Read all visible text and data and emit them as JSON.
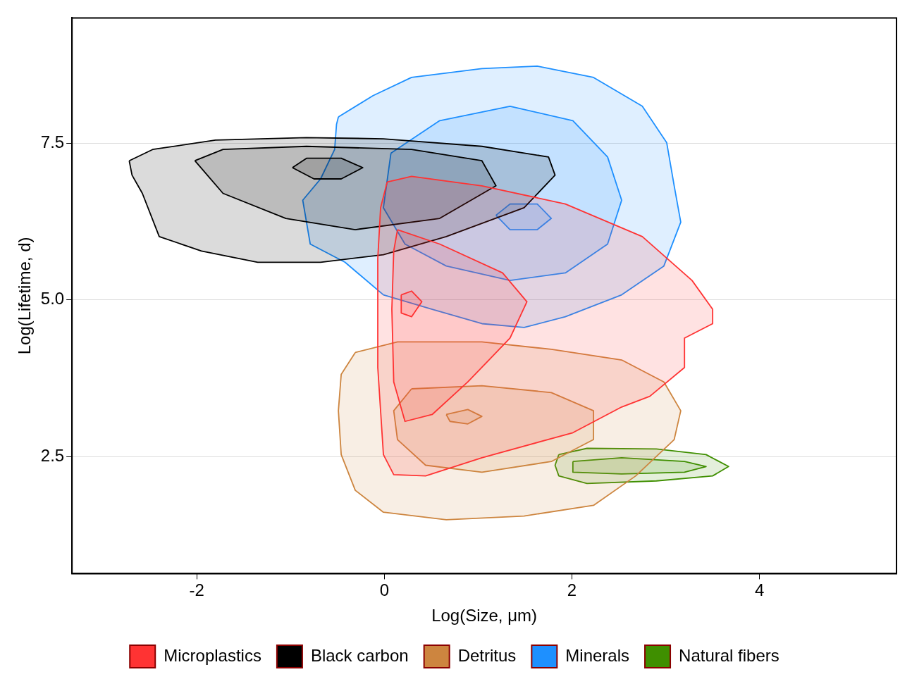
{
  "chart_data": {
    "type": "area",
    "xlabel": "Log(Size, μm)",
    "ylabel": "Log(Lifetime, d)",
    "xlim": [
      -3.33,
      5.46
    ],
    "ylim": [
      0.63,
      9.5
    ],
    "xticks": [
      -2,
      0,
      2,
      4
    ],
    "yticks": [
      {
        "value": 2.5,
        "label": "2.5"
      },
      {
        "value": 5,
        "label": "5.0"
      },
      {
        "value": 7.5,
        "label": "7.5"
      }
    ],
    "grid": "y",
    "legend": "bottom",
    "marker": "none",
    "series": [
      {
        "name": "Microplastics",
        "color": "#ff3333",
        "x": [
          0.03,
          0.29,
          1.04,
          1.93,
          2.75,
          3.28,
          3.5,
          3.5,
          3.2,
          3.2,
          2.83,
          2.53,
          2.01,
          1.04,
          0.44,
          0.1,
          -0.01,
          -0.07,
          -0.07,
          -0.04
        ],
        "values": [
          6.88,
          6.97,
          6.82,
          6.53,
          6.01,
          5.31,
          4.85,
          4.62,
          4.39,
          3.92,
          3.46,
          3.29,
          2.88,
          2.48,
          2.19,
          2.21,
          2.53,
          3.92,
          5.66,
          6.47
        ]
      },
      {
        "color": "#ff3333",
        "x": [
          0.14,
          0.59,
          1.26,
          1.52,
          1.34,
          0.89,
          0.51,
          0.22,
          0.1,
          0.08,
          0.1
        ],
        "values": [
          6.12,
          5.89,
          5.43,
          4.97,
          4.39,
          3.69,
          3.17,
          3.06,
          3.69,
          4.85,
          5.78
        ]
      },
      {
        "color": "#ff3333",
        "x": [
          0.18,
          0.29,
          0.4,
          0.29,
          0.18
        ],
        "values": [
          5.08,
          5.14,
          4.97,
          4.73,
          4.79
        ]
      },
      {
        "name": "Black carbon",
        "color": "#000000",
        "x": [
          -2.72,
          -2.69,
          -2.58,
          -2.4,
          -1.95,
          -1.35,
          -0.68,
          -0.01,
          0.66,
          1.49,
          1.82,
          1.75,
          1.04,
          -0.01,
          -0.83,
          -1.8,
          -2.47
        ],
        "values": [
          7.22,
          6.99,
          6.7,
          6.01,
          5.78,
          5.6,
          5.6,
          5.72,
          6.01,
          6.47,
          6.99,
          7.28,
          7.45,
          7.57,
          7.59,
          7.55,
          7.4
        ]
      },
      {
        "color": "#000000",
        "x": [
          -2.02,
          -1.72,
          -1.05,
          -0.31,
          0.59,
          1.19,
          1.04,
          0.29,
          -0.83,
          -1.72
        ],
        "values": [
          7.22,
          6.7,
          6.3,
          6.12,
          6.3,
          6.82,
          7.22,
          7.4,
          7.45,
          7.4
        ]
      },
      {
        "color": "#000000",
        "x": [
          -0.98,
          -0.75,
          -0.46,
          -0.23,
          -0.46,
          -0.83
        ],
        "values": [
          7.11,
          6.93,
          6.93,
          7.11,
          7.26,
          7.26
        ]
      },
      {
        "name": "Detritus",
        "color": "#cd853f",
        "x": [
          -0.31,
          0.14,
          1.04,
          1.78,
          2.53,
          2.98,
          3.16,
          3.09,
          2.68,
          2.23,
          1.49,
          0.66,
          -0.01,
          -0.31,
          -0.46,
          -0.49,
          -0.46
        ],
        "values": [
          4.16,
          4.33,
          4.33,
          4.21,
          4.04,
          3.69,
          3.23,
          2.77,
          2.19,
          1.72,
          1.55,
          1.49,
          1.61,
          1.96,
          2.53,
          3.23,
          3.81
        ]
      },
      {
        "color": "#cd853f",
        "x": [
          0.29,
          1.04,
          1.78,
          2.23,
          2.23,
          1.78,
          1.04,
          0.44,
          0.14,
          0.1
        ],
        "values": [
          3.58,
          3.63,
          3.52,
          3.23,
          2.77,
          2.42,
          2.25,
          2.36,
          2.77,
          3.23
        ]
      },
      {
        "color": "#cd853f",
        "x": [
          0.66,
          0.89,
          1.04,
          0.89,
          0.7
        ],
        "values": [
          3.17,
          3.25,
          3.14,
          3.02,
          3.06
        ]
      },
      {
        "name": "Minerals",
        "color": "#1e90ff",
        "x": [
          -0.49,
          -0.12,
          0.29,
          1.04,
          1.63,
          2.23,
          2.75,
          3.01,
          3.09,
          3.16,
          2.98,
          2.53,
          1.93,
          1.49,
          1.04,
          0.51,
          -0.01,
          -0.42,
          -0.79,
          -0.87,
          -0.68,
          -0.53,
          -0.51
        ],
        "values": [
          7.92,
          8.26,
          8.55,
          8.69,
          8.73,
          8.55,
          8.09,
          7.51,
          6.82,
          6.24,
          5.54,
          5.08,
          4.73,
          4.56,
          4.62,
          4.85,
          5.08,
          5.6,
          5.89,
          6.59,
          6.93,
          7.4,
          7.8
        ]
      },
      {
        "color": "#1e90ff",
        "x": [
          0.07,
          0.59,
          1.34,
          2.01,
          2.38,
          2.53,
          2.38,
          1.93,
          1.34,
          0.66,
          0.22,
          -0.01
        ],
        "values": [
          7.34,
          7.86,
          8.09,
          7.86,
          7.28,
          6.59,
          5.89,
          5.43,
          5.31,
          5.54,
          5.89,
          6.47
        ]
      },
      {
        "color": "#1e90ff",
        "x": [
          1.19,
          1.34,
          1.63,
          1.78,
          1.63,
          1.34
        ],
        "values": [
          6.35,
          6.53,
          6.53,
          6.3,
          6.12,
          6.12
        ]
      },
      {
        "name": "Natural fibers",
        "color": "#3f8f00",
        "x": [
          1.86,
          2.16,
          2.9,
          3.43,
          3.67,
          3.5,
          2.9,
          2.16,
          1.86,
          1.82
        ],
        "values": [
          2.53,
          2.63,
          2.62,
          2.53,
          2.34,
          2.19,
          2.11,
          2.07,
          2.19,
          2.36
        ]
      },
      {
        "color": "#3f8f00",
        "x": [
          2.01,
          2.53,
          3.2,
          3.43,
          3.2,
          2.53,
          2.01
        ],
        "values": [
          2.42,
          2.48,
          2.42,
          2.34,
          2.25,
          2.22,
          2.25
        ]
      }
    ]
  }
}
